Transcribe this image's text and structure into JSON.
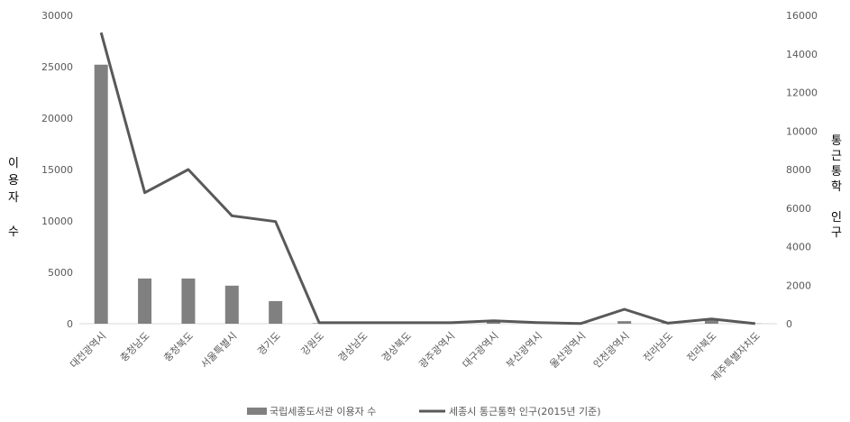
{
  "chart_data": {
    "type": "bar",
    "categories": [
      "대전광역시",
      "충청남도",
      "충청북도",
      "서울특별시",
      "경기도",
      "강원도",
      "경상남도",
      "경상북도",
      "광주광역시",
      "대구광역시",
      "부산광역시",
      "울산광역시",
      "인천광역시",
      "전라남도",
      "전라북도",
      "제주특별자치도"
    ],
    "y_left": {
      "label": "이용자 수",
      "ylim": [
        0,
        30000
      ],
      "ticks": [
        0,
        5000,
        10000,
        15000,
        20000,
        25000,
        30000
      ]
    },
    "y_right": {
      "label": "통근통학 인구",
      "ylim": [
        0,
        16000
      ],
      "ticks": [
        0,
        2000,
        4000,
        6000,
        8000,
        10000,
        12000,
        14000,
        16000
      ]
    },
    "series": [
      {
        "name": "국립세종도서관 이용자 수",
        "kind": "bar",
        "axis": "left",
        "color": "#808080",
        "values": [
          25200,
          4400,
          4400,
          3700,
          2200,
          50,
          50,
          50,
          50,
          300,
          50,
          20,
          250,
          50,
          400,
          20
        ]
      },
      {
        "name": "세종시 통근통학 인구(2015년 기준)",
        "kind": "line",
        "axis": "right",
        "color": "#595959",
        "values": [
          15100,
          6800,
          8000,
          5600,
          5300,
          50,
          50,
          50,
          50,
          150,
          60,
          10,
          750,
          30,
          250,
          5
        ]
      }
    ],
    "grid": false,
    "legend": "bottom"
  }
}
